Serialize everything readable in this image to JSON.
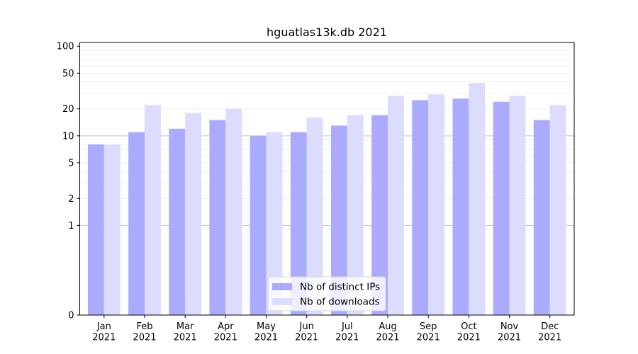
{
  "chart_data": {
    "type": "bar",
    "title": "hguatlas13k.db 2021",
    "xlabel": "",
    "ylabel": "",
    "y_scale": "symlog",
    "ylim": [
      0,
      110
    ],
    "y_ticks": [
      0,
      1,
      2,
      5,
      10,
      20,
      50,
      100
    ],
    "y_tick_labels": [
      "0",
      "1",
      "2",
      "5",
      "10",
      "20",
      "50",
      "100"
    ],
    "categories": [
      "Jan\n2021",
      "Feb\n2021",
      "Mar\n2021",
      "Apr\n2021",
      "May\n2021",
      "Jun\n2021",
      "Jul\n2021",
      "Aug\n2021",
      "Sep\n2021",
      "Oct\n2021",
      "Nov\n2021",
      "Dec\n2021"
    ],
    "category_lines": [
      [
        "Jan",
        "2021"
      ],
      [
        "Feb",
        "2021"
      ],
      [
        "Mar",
        "2021"
      ],
      [
        "Apr",
        "2021"
      ],
      [
        "May",
        "2021"
      ],
      [
        "Jun",
        "2021"
      ],
      [
        "Jul",
        "2021"
      ],
      [
        "Aug",
        "2021"
      ],
      [
        "Sep",
        "2021"
      ],
      [
        "Oct",
        "2021"
      ],
      [
        "Nov",
        "2021"
      ],
      [
        "Dec",
        "2021"
      ]
    ],
    "series": [
      {
        "name": "Nb of distinct IPs",
        "color": "#aaaaff",
        "values": [
          8,
          11,
          12,
          15,
          10,
          11,
          13,
          17,
          25,
          26,
          24,
          15
        ]
      },
      {
        "name": "Nb of downloads",
        "color": "#dcdcff",
        "values": [
          8,
          22,
          18,
          20,
          11,
          16,
          17,
          28,
          29,
          39,
          28,
          22
        ]
      }
    ],
    "legend_position": "lower-center",
    "grid": true,
    "highlight_lines": [
      1,
      10
    ]
  }
}
